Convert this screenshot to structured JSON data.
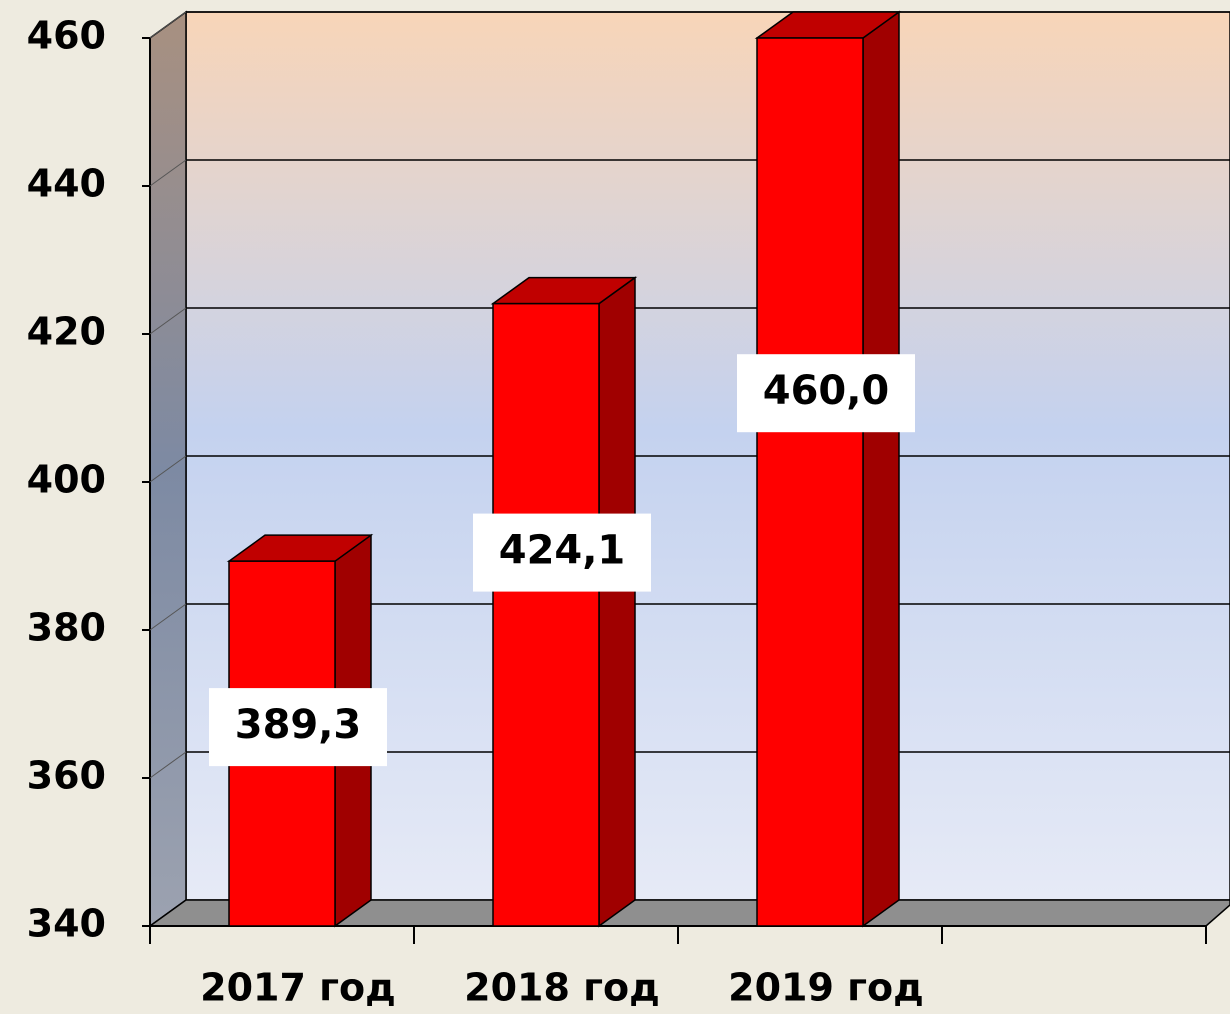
{
  "chart_data": {
    "type": "bar3d",
    "categories": [
      "2017 год",
      "2018 год",
      "2019 год",
      null
    ],
    "values": [
      389.3,
      424.1,
      460.0,
      null
    ],
    "value_labels": [
      "389,3",
      "424,1",
      "460,0",
      null
    ],
    "color": "#ff0000",
    "ylim": [
      340,
      460
    ],
    "yticks": [
      340,
      360,
      380,
      400,
      420,
      440,
      460
    ],
    "grid": true
  }
}
